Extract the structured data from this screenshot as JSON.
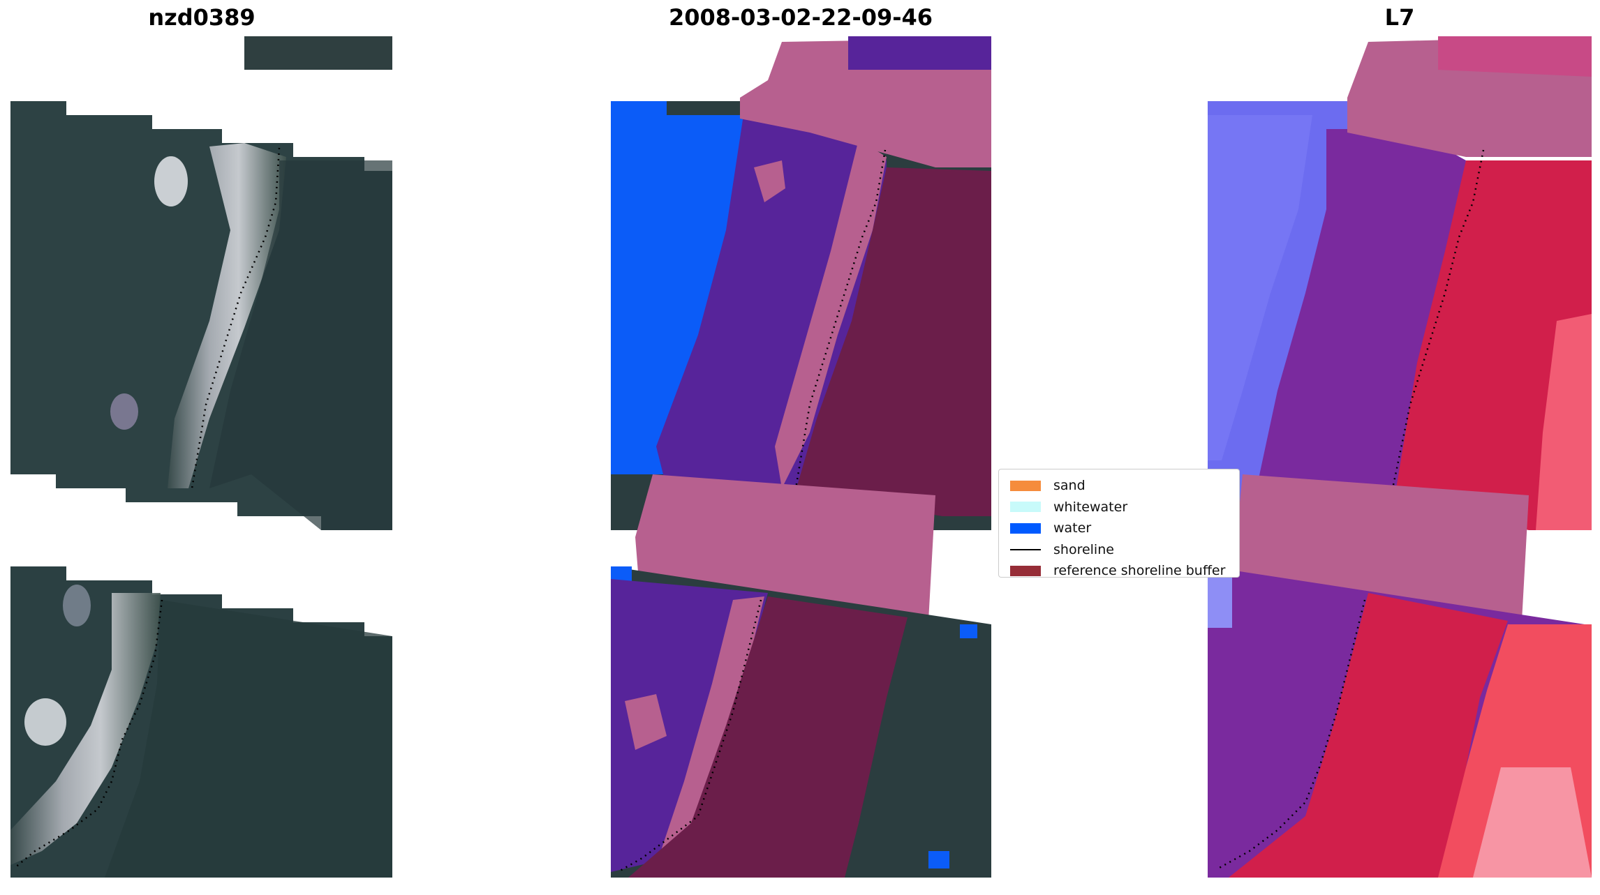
{
  "panels": [
    {
      "title": "nzd0389"
    },
    {
      "title": "2008-03-02-22-09-46"
    },
    {
      "title": "L7"
    }
  ],
  "legend": {
    "items": [
      {
        "label": "sand",
        "color": "#f58c3c",
        "kind": "patch"
      },
      {
        "label": "whitewater",
        "color": "#c8fafa",
        "kind": "patch"
      },
      {
        "label": "water",
        "color": "#005aff",
        "kind": "patch"
      },
      {
        "label": "shoreline",
        "color": "#000000",
        "kind": "line"
      },
      {
        "label": "reference shoreline buffer",
        "color": "#962d37",
        "kind": "patch"
      }
    ]
  },
  "colors": {
    "rgb_background": "#2a3b3e",
    "rgb_water_dark": "#28403f",
    "beach": "#d8d9dc",
    "classified_water": "#0b5cf8",
    "classified_other": "#57249a",
    "buffer": "#b7608f",
    "buffer_dark": "#6b1e4a",
    "index_blue": "#6c6cf0",
    "index_red": "#d11f4b",
    "index_purple": "#7a2a9e"
  }
}
